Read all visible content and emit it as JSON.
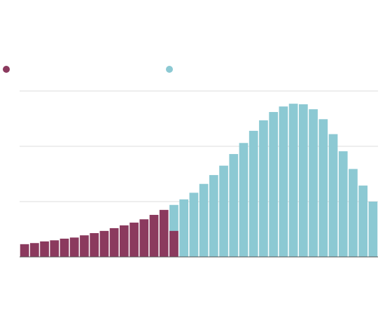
{
  "chart_data": {
    "type": "bar",
    "overlay": true,
    "categories": [
      null,
      null,
      null,
      null,
      null,
      null,
      null,
      null,
      null,
      null,
      null,
      null,
      null,
      null,
      null,
      null,
      null,
      null,
      null,
      null,
      null,
      null,
      null,
      null,
      null,
      null,
      null,
      null,
      null,
      null,
      null,
      null,
      null,
      null,
      null,
      null
    ],
    "series": [
      {
        "color": "#8cc9d3",
        "values": [
          null,
          null,
          null,
          null,
          null,
          null,
          null,
          null,
          null,
          null,
          null,
          null,
          null,
          null,
          null,
          0.94,
          1.04,
          1.16,
          1.32,
          1.48,
          1.65,
          1.86,
          2.06,
          2.28,
          2.47,
          2.62,
          2.72,
          2.77,
          2.76,
          2.67,
          2.49,
          2.22,
          1.91,
          1.59,
          1.29,
          1.0
        ]
      },
      {
        "color": "#8b3a5e",
        "values": [
          0.23,
          0.25,
          0.28,
          0.3,
          0.33,
          0.35,
          0.39,
          0.43,
          0.47,
          0.52,
          0.57,
          0.62,
          0.68,
          0.76,
          0.85,
          0.47,
          null,
          null,
          null,
          null,
          null,
          null,
          null,
          null,
          null,
          null,
          null,
          null,
          null,
          null,
          null,
          null,
          null,
          null,
          null,
          null
        ]
      }
    ],
    "ylim": [
      0,
      3
    ],
    "yticks": [
      0,
      1,
      2,
      3
    ],
    "grid": true
  }
}
